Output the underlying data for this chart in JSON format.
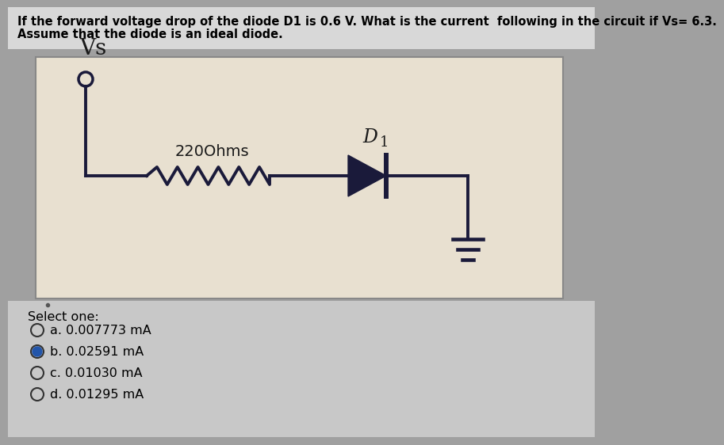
{
  "title_line1": "If the forward voltage drop of the diode D1 is 0.6 V. What is the current  following in the circuit if Vs= 6.3.",
  "title_line2": "Assume that the diode is an ideal diode.",
  "circuit_bg": "#e8e0d0",
  "page_bg": "#a0a0a0",
  "resistor_label": "220Ohms",
  "diode_label": "D",
  "diode_subscript": "1",
  "vs_label": "Vs",
  "select_text": "Select one:",
  "options": [
    {
      "label": "a. 0.007773 mA",
      "selected": false
    },
    {
      "label": "b. 0.02591 mA",
      "selected": true
    },
    {
      "label": "c. 0.01030 mA",
      "selected": false
    },
    {
      "label": "d. 0.01295 mA",
      "selected": false
    }
  ],
  "title_fontsize": 10.5,
  "vs_fontsize": 20,
  "resistor_fontsize": 14,
  "diode_label_fontsize": 17,
  "option_fontsize": 11.5,
  "select_fontsize": 11.5,
  "wire_color": "#1a1a3a",
  "text_color": "#1a1a1a",
  "circuit_line_color": "#1a1a3a"
}
